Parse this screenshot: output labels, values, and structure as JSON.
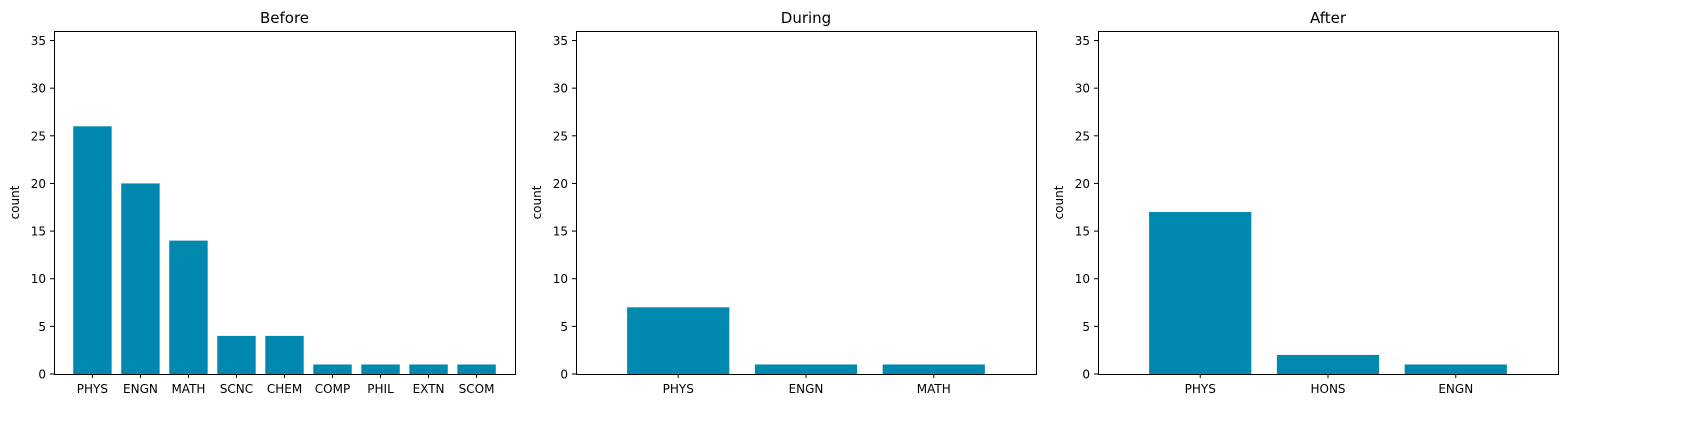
{
  "colors": {
    "bar": "#0088ae",
    "axis": "#000000",
    "background": "#ffffff"
  },
  "chart_data": [
    {
      "type": "bar",
      "title": "Before",
      "xlabel": "",
      "ylabel": "count",
      "ylim": [
        0,
        36
      ],
      "yticks": [
        0,
        5,
        10,
        15,
        20,
        25,
        30,
        35
      ],
      "categories": [
        "PHYS",
        "ENGN",
        "MATH",
        "SCNC",
        "CHEM",
        "COMP",
        "PHIL",
        "EXTN",
        "SCOM"
      ],
      "values": [
        26,
        20,
        14,
        4,
        4,
        1,
        1,
        1,
        1
      ],
      "grid": false,
      "legend": "none"
    },
    {
      "type": "bar",
      "title": "During",
      "xlabel": "",
      "ylabel": "count",
      "ylim": [
        0,
        36
      ],
      "yticks": [
        0,
        5,
        10,
        15,
        20,
        25,
        30,
        35
      ],
      "categories": [
        "PHYS",
        "ENGN",
        "MATH"
      ],
      "values": [
        7,
        1,
        1
      ],
      "grid": false,
      "legend": "none"
    },
    {
      "type": "bar",
      "title": "After",
      "xlabel": "",
      "ylabel": "count",
      "ylim": [
        0,
        36
      ],
      "yticks": [
        0,
        5,
        10,
        15,
        20,
        25,
        30,
        35
      ],
      "categories": [
        "PHYS",
        "HONS",
        "ENGN"
      ],
      "values": [
        17,
        2,
        1
      ],
      "grid": false,
      "legend": "none"
    }
  ]
}
